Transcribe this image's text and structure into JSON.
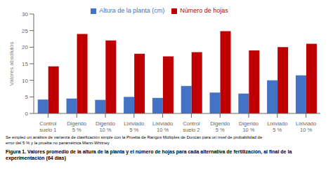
{
  "chart_data": {
    "type": "bar",
    "title": "Figura 1. Valores promedio de la altura de la planta y el número de hojas para cada alternativa de fertilización, al final de la experimentación (64 días)",
    "annotations": [
      "Se empleó un análisis de varianza de clasificación simple con la Prueba de Rangos Múltiples de Duncan para un nivel de probabilidad de",
      "error del 5 % y la prueba no paramétrica Mann-Whitney"
    ],
    "categories": [
      "Control\nsuelo 1",
      "Digerido\n5 %",
      "Digerido\n10 %",
      "Lixiviado\n5 %",
      "Lixiviado\n10 %",
      "Control\nsuelo 2",
      "Digerido\n5 %",
      "Digerido\n10 %",
      "Lixiviado\n5 %",
      "Lixiviado\n10 %"
    ],
    "series": [
      {
        "name": "Altura de la planta (cm)",
        "color": "#4472C4",
        "values": [
          4.2,
          4.5,
          4.1,
          5.0,
          4.7,
          8.3,
          6.3,
          6.0,
          10.0,
          11.5
        ]
      },
      {
        "name": "Número de hojas",
        "color": "#C00000",
        "values": [
          14.2,
          24.0,
          22.0,
          18.0,
          17.2,
          18.5,
          24.8,
          19.0,
          20.0,
          21.0
        ]
      }
    ],
    "ylabel": "Valores absolutos",
    "ylim": [
      0,
      30
    ],
    "yticks": [
      0,
      5,
      10,
      15,
      20,
      25,
      30
    ],
    "grid": false,
    "legend": "top"
  }
}
